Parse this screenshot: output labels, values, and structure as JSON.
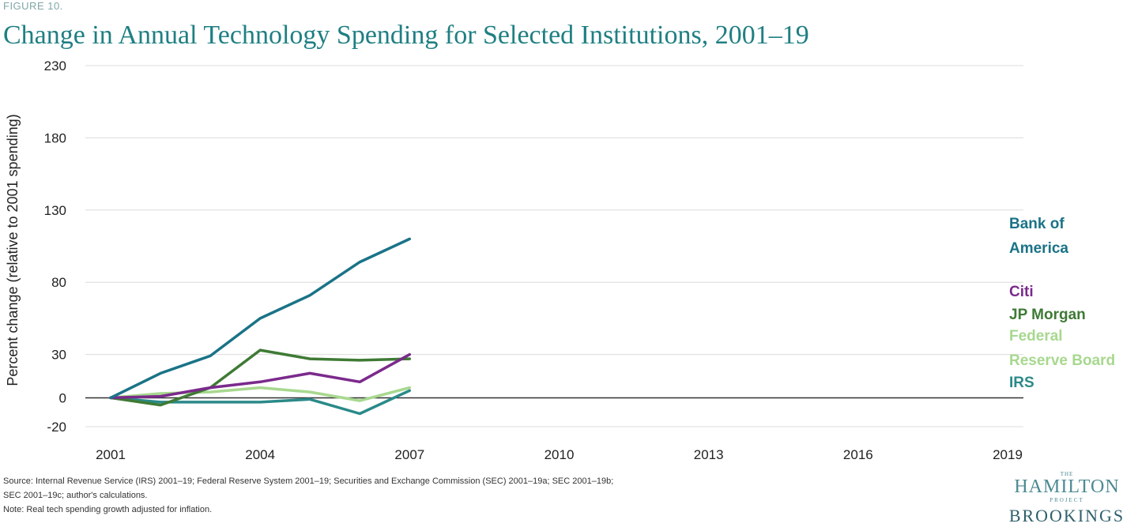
{
  "header": {
    "figure_label": "FIGURE 10.",
    "title": "Change in Annual Technology Spending for Selected Institutions, 2001–19"
  },
  "chart_data": {
    "type": "line",
    "title": "Change in Annual Technology Spending for Selected Institutions, 2001–19",
    "xlabel": "",
    "ylabel": "Percent change (relative to 2001 spending)",
    "xlim": [
      2001,
      2019
    ],
    "ylim": [
      -20,
      230
    ],
    "x_ticks": [
      2001,
      2004,
      2007,
      2010,
      2013,
      2016,
      2019
    ],
    "y_ticks": [
      -20,
      0,
      30,
      80,
      130,
      180,
      230
    ],
    "grid": true,
    "legend_placement": "right (labels at line ends)",
    "x": [
      2001,
      2002,
      2003,
      2004,
      2005,
      2006,
      2007
    ],
    "series": [
      {
        "name": "Bank of America",
        "color": "#1a7387",
        "values": [
          0,
          17,
          29,
          55,
          71,
          94,
          110
        ]
      },
      {
        "name": "Citi",
        "color": "#7b2a8c",
        "values": [
          0,
          1,
          7,
          11,
          17,
          11,
          30
        ]
      },
      {
        "name": "JP Morgan",
        "color": "#3f7a35",
        "values": [
          0,
          -5,
          7,
          33,
          27,
          26,
          27
        ]
      },
      {
        "name": "Federal Reserve Board",
        "color": "#a7d88f",
        "values": [
          0,
          3,
          4,
          7,
          4,
          -2,
          7
        ]
      },
      {
        "name": "IRS",
        "color": "#2a8a89",
        "values": [
          0,
          -3,
          -3,
          -3,
          -1,
          -11,
          5
        ]
      }
    ],
    "legend_labels": [
      {
        "lines": [
          "Bank of",
          "America"
        ],
        "color": "#1a7387"
      },
      {
        "lines": [
          "Citi"
        ],
        "color": "#7b2a8c"
      },
      {
        "lines": [
          "JP Morgan"
        ],
        "color": "#3f7a35"
      },
      {
        "lines": [
          "Federal",
          "Reserve Board"
        ],
        "color": "#a7d88f"
      },
      {
        "lines": [
          "IRS"
        ],
        "color": "#2a8a89"
      }
    ]
  },
  "notes": {
    "source": "Source: Internal Revenue Service (IRS) 2001–19; Federal Reserve System 2001–19; Securities and Exchange Commission (SEC) 2001–19a; SEC 2001–19b;",
    "source_cont": "SEC 2001–19c; author's calculations.",
    "note": "Note: Real tech spending growth adjusted for inflation."
  },
  "logo": {
    "the": "THE",
    "hamilton": "HAMILTON",
    "project": "PROJECT",
    "brookings": "BROOKINGS"
  }
}
